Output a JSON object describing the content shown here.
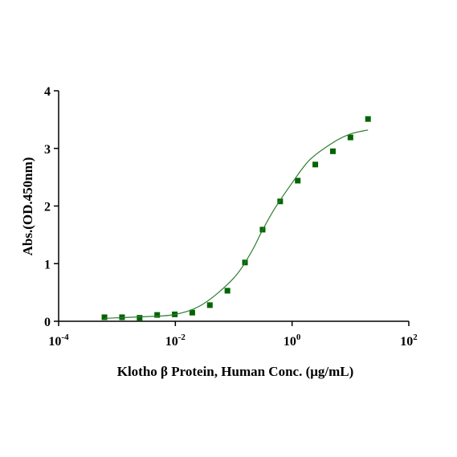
{
  "chart_data": {
    "type": "scatter",
    "log_x": true,
    "x_label": "Klotho β Protein, Human Conc. (μg/mL)",
    "y_label": "Abs.(OD.450nm)",
    "series": [
      {
        "kind": "points",
        "color": "#006400",
        "x": [
          0.00061,
          0.00122,
          0.00244,
          0.00488,
          0.00977,
          0.0195,
          0.039,
          0.078,
          0.156,
          0.3125,
          0.625,
          1.25,
          2.5,
          5,
          10,
          20
        ],
        "values": [
          0.07,
          0.07,
          0.06,
          0.11,
          0.12,
          0.15,
          0.28,
          0.53,
          1.02,
          1.59,
          2.08,
          2.44,
          2.72,
          2.95,
          3.19,
          3.51
        ]
      },
      {
        "kind": "fit",
        "color": "#2e7d32",
        "x": [
          0.00061,
          0.001,
          0.003,
          0.01,
          0.03,
          0.1,
          0.2,
          0.3,
          0.5,
          1,
          2,
          5,
          10,
          20
        ],
        "values": [
          0.05,
          0.06,
          0.08,
          0.12,
          0.3,
          0.75,
          1.2,
          1.55,
          1.95,
          2.4,
          2.8,
          3.1,
          3.25,
          3.32
        ]
      }
    ],
    "xlim": [
      0.0001,
      100
    ],
    "xticks": [
      {
        "value": 0.0001,
        "label": "10-4"
      },
      {
        "value": 0.01,
        "label": "10-2"
      },
      {
        "value": 1,
        "label": "100"
      },
      {
        "value": 100,
        "label": "102"
      }
    ],
    "ylim": [
      0,
      4
    ],
    "yticks": [
      0,
      1,
      2,
      3,
      4
    ],
    "grid": false
  }
}
